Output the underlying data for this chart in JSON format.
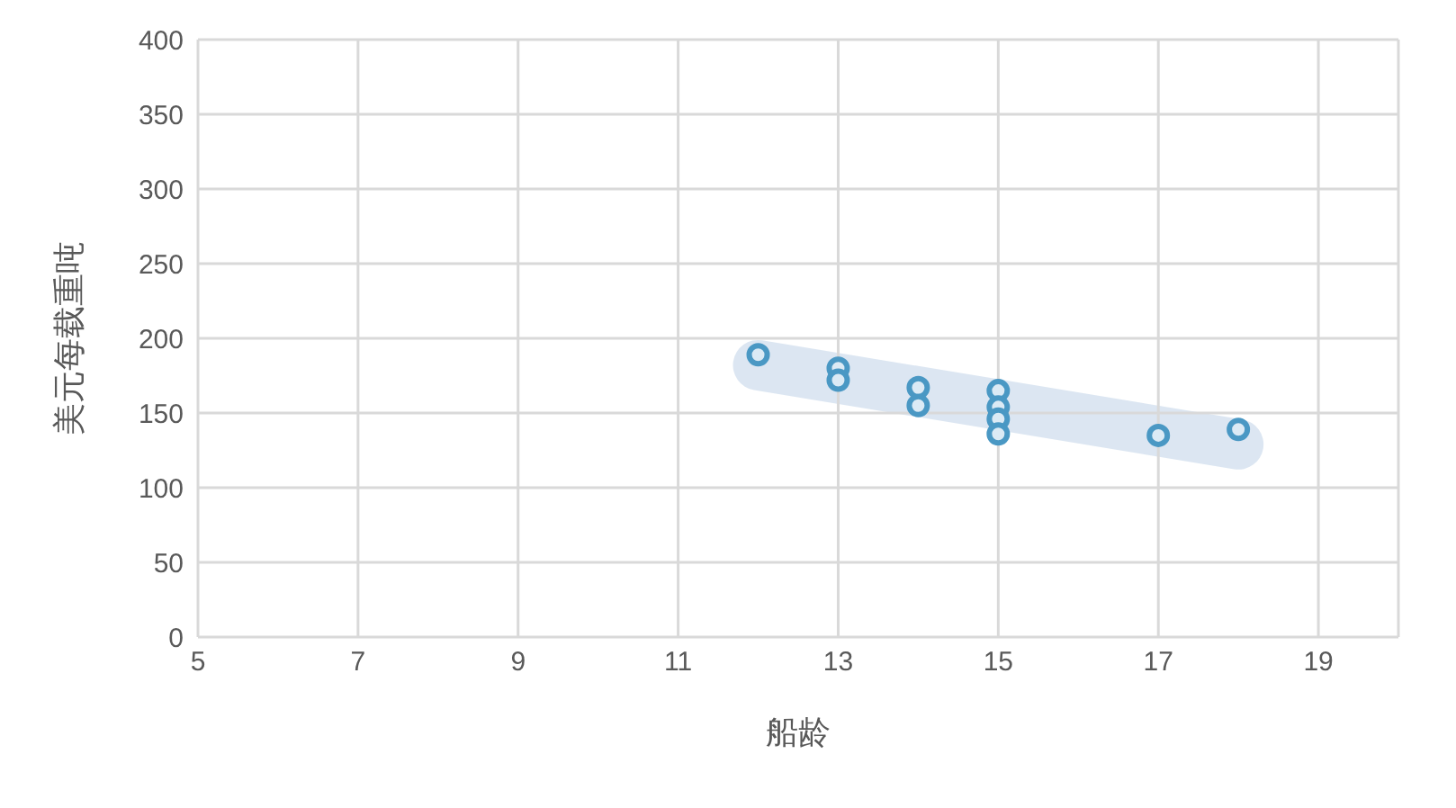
{
  "chart_data": {
    "type": "scatter",
    "xlabel": "船龄",
    "ylabel": "美元每载重吨",
    "x": [
      12,
      13,
      13,
      14,
      14,
      15,
      15,
      15,
      15,
      17,
      18
    ],
    "values": [
      189,
      180,
      172,
      167,
      155,
      165,
      154,
      146,
      136,
      135,
      139
    ],
    "color": "#4a98c4",
    "marker": "circle",
    "xlim": [
      5,
      20
    ],
    "xticks": [
      5,
      7,
      9,
      11,
      13,
      15,
      17,
      19
    ],
    "ylim": [
      0,
      400
    ],
    "yticks": [
      0,
      50,
      100,
      150,
      200,
      250,
      300,
      350,
      400
    ],
    "grid": true,
    "legend": false
  }
}
